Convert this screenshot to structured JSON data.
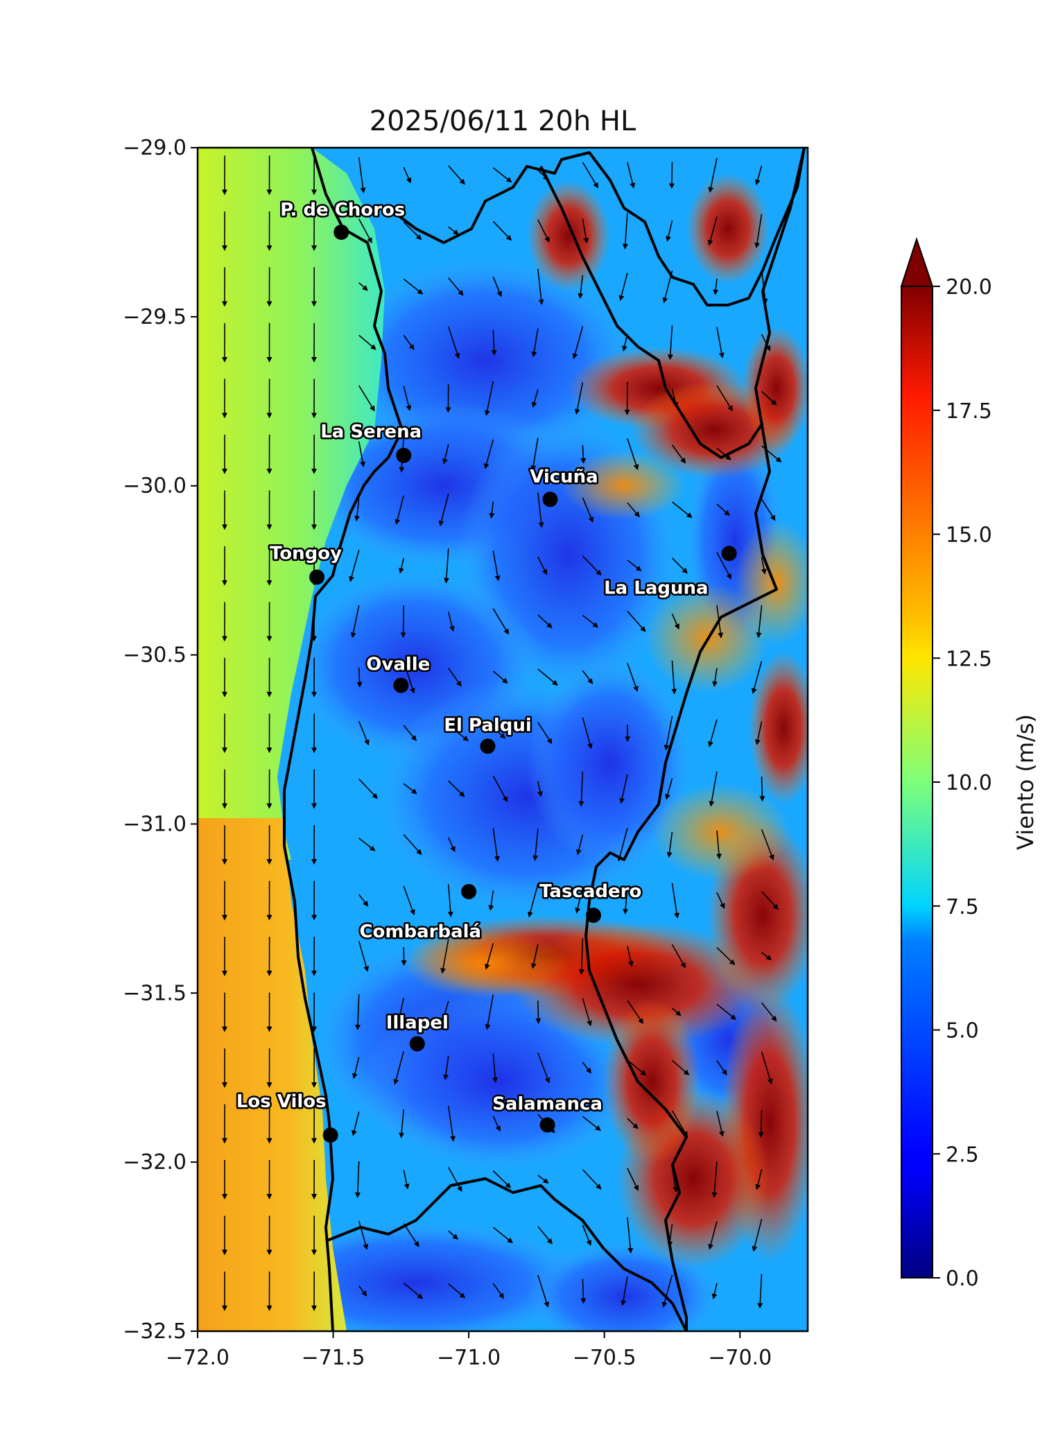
{
  "title": "2025/06/11 20h HL",
  "map": {
    "lon_range": [
      -72.0,
      -69.75
    ],
    "lat_range": [
      -32.5,
      -29.0
    ],
    "x_ticks": [
      -72.0,
      -71.5,
      -71.0,
      -70.5,
      -70.0
    ],
    "x_tick_labels": [
      "−72.0",
      "−71.5",
      "−71.0",
      "−70.5",
      "−70.0"
    ],
    "y_ticks": [
      -29.0,
      -29.5,
      -30.0,
      -30.5,
      -31.0,
      -31.5,
      -32.0,
      -32.5
    ],
    "y_tick_labels": [
      "−29.0",
      "−29.5",
      "−30.0",
      "−30.5",
      "−31.0",
      "−31.5",
      "−32.0",
      "−32.5"
    ],
    "variable": "wind speed (m/s)",
    "arrow_general_direction": "southward",
    "cities": [
      {
        "name": "P. de Choros",
        "lon": -71.47,
        "lat": -29.25,
        "label_pos": "above-left"
      },
      {
        "name": "La Serena",
        "lon": -71.24,
        "lat": -29.91,
        "label_pos": "above-left"
      },
      {
        "name": "Vicuña",
        "lon": -70.7,
        "lat": -30.04,
        "label_pos": "above"
      },
      {
        "name": "La Laguna",
        "lon": -70.04,
        "lat": -30.2,
        "label_pos": "below-left"
      },
      {
        "name": "Tongoy",
        "lon": -71.56,
        "lat": -30.27,
        "label_pos": "above-left"
      },
      {
        "name": "Ovalle",
        "lon": -71.25,
        "lat": -30.59,
        "label_pos": "above"
      },
      {
        "name": "El Palqui",
        "lon": -70.93,
        "lat": -30.77,
        "label_pos": "above"
      },
      {
        "name": "Combarbalá",
        "lon": -71.0,
        "lat": -31.2,
        "label_pos": "below-left"
      },
      {
        "name": "Tascadero",
        "lon": -70.54,
        "lat": -31.27,
        "label_pos": "above-right"
      },
      {
        "name": "Illapel",
        "lon": -71.19,
        "lat": -31.65,
        "label_pos": "above"
      },
      {
        "name": "Los Vilos",
        "lon": -71.51,
        "lat": -31.92,
        "label_pos": "above-left"
      },
      {
        "name": "Salamanca",
        "lon": -70.71,
        "lat": -31.89,
        "label_pos": "above"
      }
    ]
  },
  "colorbar": {
    "label": "Viento (m/s)",
    "min": 0.0,
    "max": 20.0,
    "extend": "max",
    "colormap": "jet",
    "ticks": [
      0.0,
      2.5,
      5.0,
      7.5,
      10.0,
      12.5,
      15.0,
      17.5,
      20.0
    ],
    "tick_labels": [
      "0.0",
      "2.5",
      "5.0",
      "7.5",
      "10.0",
      "12.5",
      "15.0",
      "17.5",
      "20.0"
    ]
  },
  "colors": {
    "background": "#ffffff",
    "coast": "#000000",
    "extend_arrow": "#800000"
  }
}
